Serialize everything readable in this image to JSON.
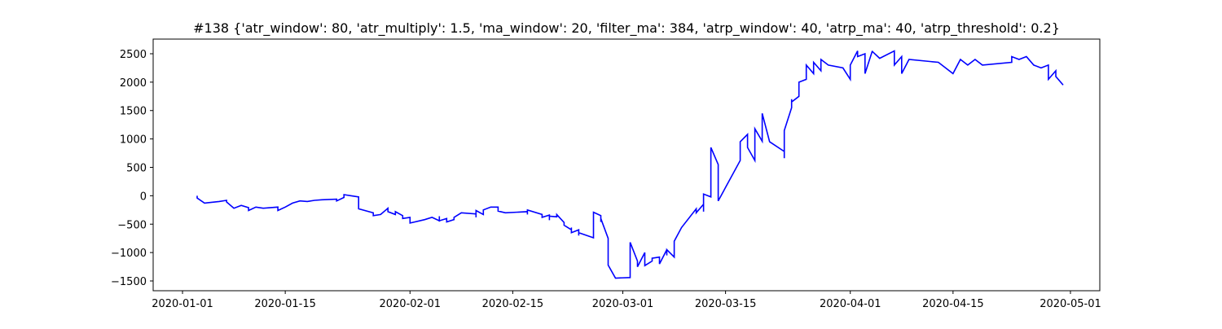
{
  "chart_data": {
    "type": "line",
    "title": "#138 {'atr_window': 80, 'atr_multiply': 1.5, 'ma_window': 20, 'filter_ma': 384, 'atrp_window': 40, 'atrp_ma': 40, 'atrp_threshold': 0.2}",
    "color": "#0000ff",
    "x": [
      "2020-01-03",
      "2020-01-03",
      "2020-01-04",
      "2020-01-06",
      "2020-01-07",
      "2020-01-07",
      "2020-01-08",
      "2020-01-09",
      "2020-01-10",
      "2020-01-10",
      "2020-01-11",
      "2020-01-12",
      "2020-01-14",
      "2020-01-14",
      "2020-01-15",
      "2020-01-16",
      "2020-01-17",
      "2020-01-18",
      "2020-01-19",
      "2020-01-20",
      "2020-01-22",
      "2020-01-22",
      "2020-01-23",
      "2020-01-23",
      "2020-01-24",
      "2020-01-25",
      "2020-01-25",
      "2020-01-27",
      "2020-01-27",
      "2020-01-28",
      "2020-01-29",
      "2020-01-29",
      "2020-01-30",
      "2020-01-30",
      "2020-01-31",
      "2020-01-31",
      "2020-02-01",
      "2020-02-01",
      "2020-02-03",
      "2020-02-04",
      "2020-02-05",
      "2020-02-05",
      "2020-02-05",
      "2020-02-06",
      "2020-02-06",
      "2020-02-07",
      "2020-02-07",
      "2020-02-08",
      "2020-02-10",
      "2020-02-10",
      "2020-02-10",
      "2020-02-11",
      "2020-02-11",
      "2020-02-12",
      "2020-02-13",
      "2020-02-13",
      "2020-02-14",
      "2020-02-17",
      "2020-02-17",
      "2020-02-17",
      "2020-02-19",
      "2020-02-19",
      "2020-02-20",
      "2020-02-20",
      "2020-02-20",
      "2020-02-21",
      "2020-02-21",
      "2020-02-22",
      "2020-02-22",
      "2020-02-23",
      "2020-02-23",
      "2020-02-23",
      "2020-02-24",
      "2020-02-24",
      "2020-02-24",
      "2020-02-26",
      "2020-02-26",
      "2020-02-27",
      "2020-02-27",
      "2020-02-27",
      "2020-02-28",
      "2020-02-28",
      "2020-02-29",
      "2020-03-02",
      "2020-03-02",
      "2020-03-03",
      "2020-03-03",
      "2020-03-04",
      "2020-03-04",
      "2020-03-05",
      "2020-03-05",
      "2020-03-06",
      "2020-03-06",
      "2020-03-07",
      "2020-03-07",
      "2020-03-07",
      "2020-03-08",
      "2020-03-08",
      "2020-03-09",
      "2020-03-11",
      "2020-03-11",
      "2020-03-12",
      "2020-03-12",
      "2020-03-12",
      "2020-03-12",
      "2020-03-13",
      "2020-03-13",
      "2020-03-13",
      "2020-03-13",
      "2020-03-13",
      "2020-03-13",
      "2020-03-14",
      "2020-03-14",
      "2020-03-17",
      "2020-03-17",
      "2020-03-18",
      "2020-03-18",
      "2020-03-19",
      "2020-03-19",
      "2020-03-19",
      "2020-03-20",
      "2020-03-20",
      "2020-03-20",
      "2020-03-21",
      "2020-03-23",
      "2020-03-23",
      "2020-03-23",
      "2020-03-24",
      "2020-03-24",
      "2020-03-24",
      "2020-03-25",
      "2020-03-25",
      "2020-03-26",
      "2020-03-26",
      "2020-03-27",
      "2020-03-27",
      "2020-03-28",
      "2020-03-28",
      "2020-03-29",
      "2020-03-31",
      "2020-04-01",
      "2020-04-01",
      "2020-04-02",
      "2020-04-02",
      "2020-04-03",
      "2020-04-03",
      "2020-04-04",
      "2020-04-04",
      "2020-04-05",
      "2020-04-07",
      "2020-04-07",
      "2020-04-08",
      "2020-04-08",
      "2020-04-09",
      "2020-04-13",
      "2020-04-15",
      "2020-04-16",
      "2020-04-17",
      "2020-04-18",
      "2020-04-19",
      "2020-04-23",
      "2020-04-23",
      "2020-04-24",
      "2020-04-25",
      "2020-04-26",
      "2020-04-27",
      "2020-04-28",
      "2020-04-28",
      "2020-04-29",
      "2020-04-29",
      "2020-04-30"
    ],
    "values": [
      0,
      -40,
      -130,
      -100,
      -80,
      -110,
      -220,
      -170,
      -210,
      -260,
      -200,
      -220,
      -200,
      -260,
      -200,
      -130,
      -90,
      -100,
      -80,
      -70,
      -60,
      -90,
      -30,
      20,
      0,
      -20,
      -230,
      -300,
      -350,
      -330,
      -220,
      -280,
      -330,
      -280,
      -350,
      -400,
      -380,
      -480,
      -420,
      -380,
      -440,
      -360,
      -440,
      -400,
      -460,
      -420,
      -380,
      -300,
      -320,
      -380,
      -260,
      -330,
      -250,
      -200,
      -200,
      -270,
      -300,
      -280,
      -330,
      -250,
      -330,
      -380,
      -340,
      -430,
      -360,
      -370,
      -330,
      -470,
      -520,
      -600,
      -560,
      -650,
      -600,
      -700,
      -650,
      -740,
      -290,
      -350,
      -460,
      -400,
      -750,
      -1220,
      -1450,
      -1440,
      -820,
      -1150,
      -1250,
      -1000,
      -1230,
      -1150,
      -1100,
      -1080,
      -1200,
      -950,
      -1050,
      -950,
      -1080,
      -800,
      -560,
      -230,
      -300,
      -150,
      -280,
      0,
      30,
      -20,
      300,
      250,
      650,
      500,
      850,
      550,
      -90,
      620,
      950,
      1080,
      850,
      620,
      950,
      1180,
      960,
      1300,
      1450,
      950,
      780,
      660,
      1150,
      1550,
      1700,
      1650,
      1750,
      2000,
      2050,
      2300,
      2150,
      2350,
      2200,
      2400,
      2300,
      2250,
      2050,
      2300,
      2550,
      2450,
      2500,
      2150,
      2550,
      2540,
      2420,
      2550,
      2300,
      2450,
      2150,
      2400,
      2350,
      2150,
      2400,
      2300,
      2400,
      2300,
      2350,
      2450,
      2400,
      2450,
      2300,
      2250,
      2300,
      2050,
      2200,
      2100,
      1950
    ],
    "xlim": [
      "2019-12-28",
      "2020-05-05"
    ],
    "xticks": [
      "2020-01-01",
      "2020-01-15",
      "2020-02-01",
      "2020-02-15",
      "2020-03-01",
      "2020-03-15",
      "2020-04-01",
      "2020-04-15",
      "2020-05-01"
    ],
    "ylim": [
      -1672,
      2758
    ],
    "yticks": [
      {
        "value": -1500,
        "label": "−1500"
      },
      {
        "value": -1000,
        "label": "−1000"
      },
      {
        "value": -500,
        "label": "−500"
      },
      0,
      500,
      1000,
      1500,
      2000,
      2500
    ],
    "grid": false
  }
}
